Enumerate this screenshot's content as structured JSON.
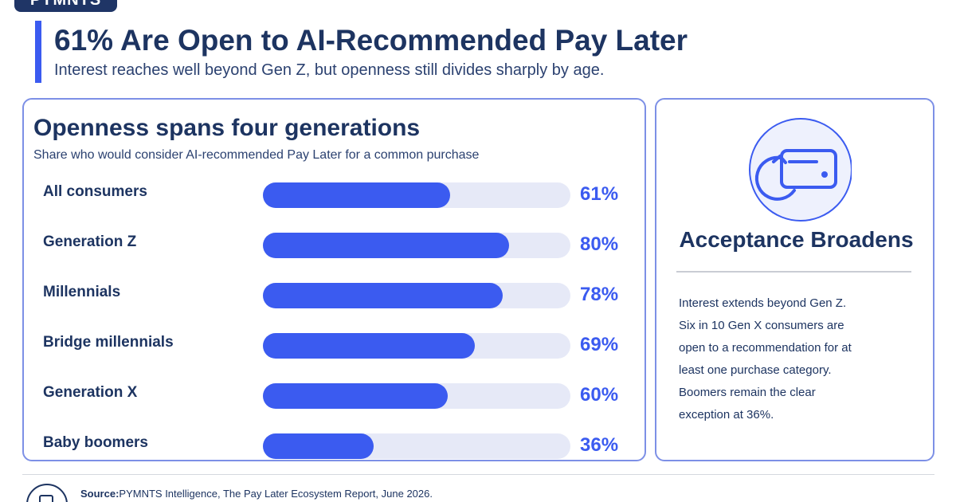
{
  "brand": {
    "tag": "PYMNTS"
  },
  "header": {
    "title": "61% Are Open to AI-Recommended Pay Later",
    "subtitle": "Interest reaches well beyond Gen Z, but openness still divides sharply by age."
  },
  "chart_data": {
    "type": "bar",
    "orientation": "horizontal",
    "title": "Openness spans four generations",
    "subtitle": "Share who would consider AI-recommended Pay Later for a common purchase",
    "categories": [
      "All consumers",
      "Generation Z",
      "Millennials",
      "Bridge millennials",
      "Generation X",
      "Baby boomers"
    ],
    "values": [
      61,
      80,
      78,
      69,
      60,
      36
    ],
    "value_labels": [
      "61%",
      "80%",
      "78%",
      "69%",
      "60%",
      "36%"
    ],
    "xlim": [
      0,
      100
    ],
    "grid": false,
    "colors": {
      "bar": "#3b5bf0",
      "track": "#e6e9f7",
      "value": "#3b5bf0"
    }
  },
  "sidebar": {
    "icon": "credit-card-refresh-icon",
    "title": "Acceptance Broadens",
    "lines": [
      "Interest extends beyond Gen Z.",
      "Six in 10 Gen X consumers are",
      "open to a recommendation for at",
      "least one purchase category.",
      "Boomers remain the clear",
      "exception at 36%."
    ]
  },
  "footer": {
    "icon": "document-icon",
    "source_label": "Source:",
    "source_text": "PYMNTS Intelligence, The Pay Later Ecosystem Report, June 2026."
  },
  "colors": {
    "accent": "#3b5bf0",
    "navy": "#1d3461",
    "border": "#7d90e6"
  }
}
